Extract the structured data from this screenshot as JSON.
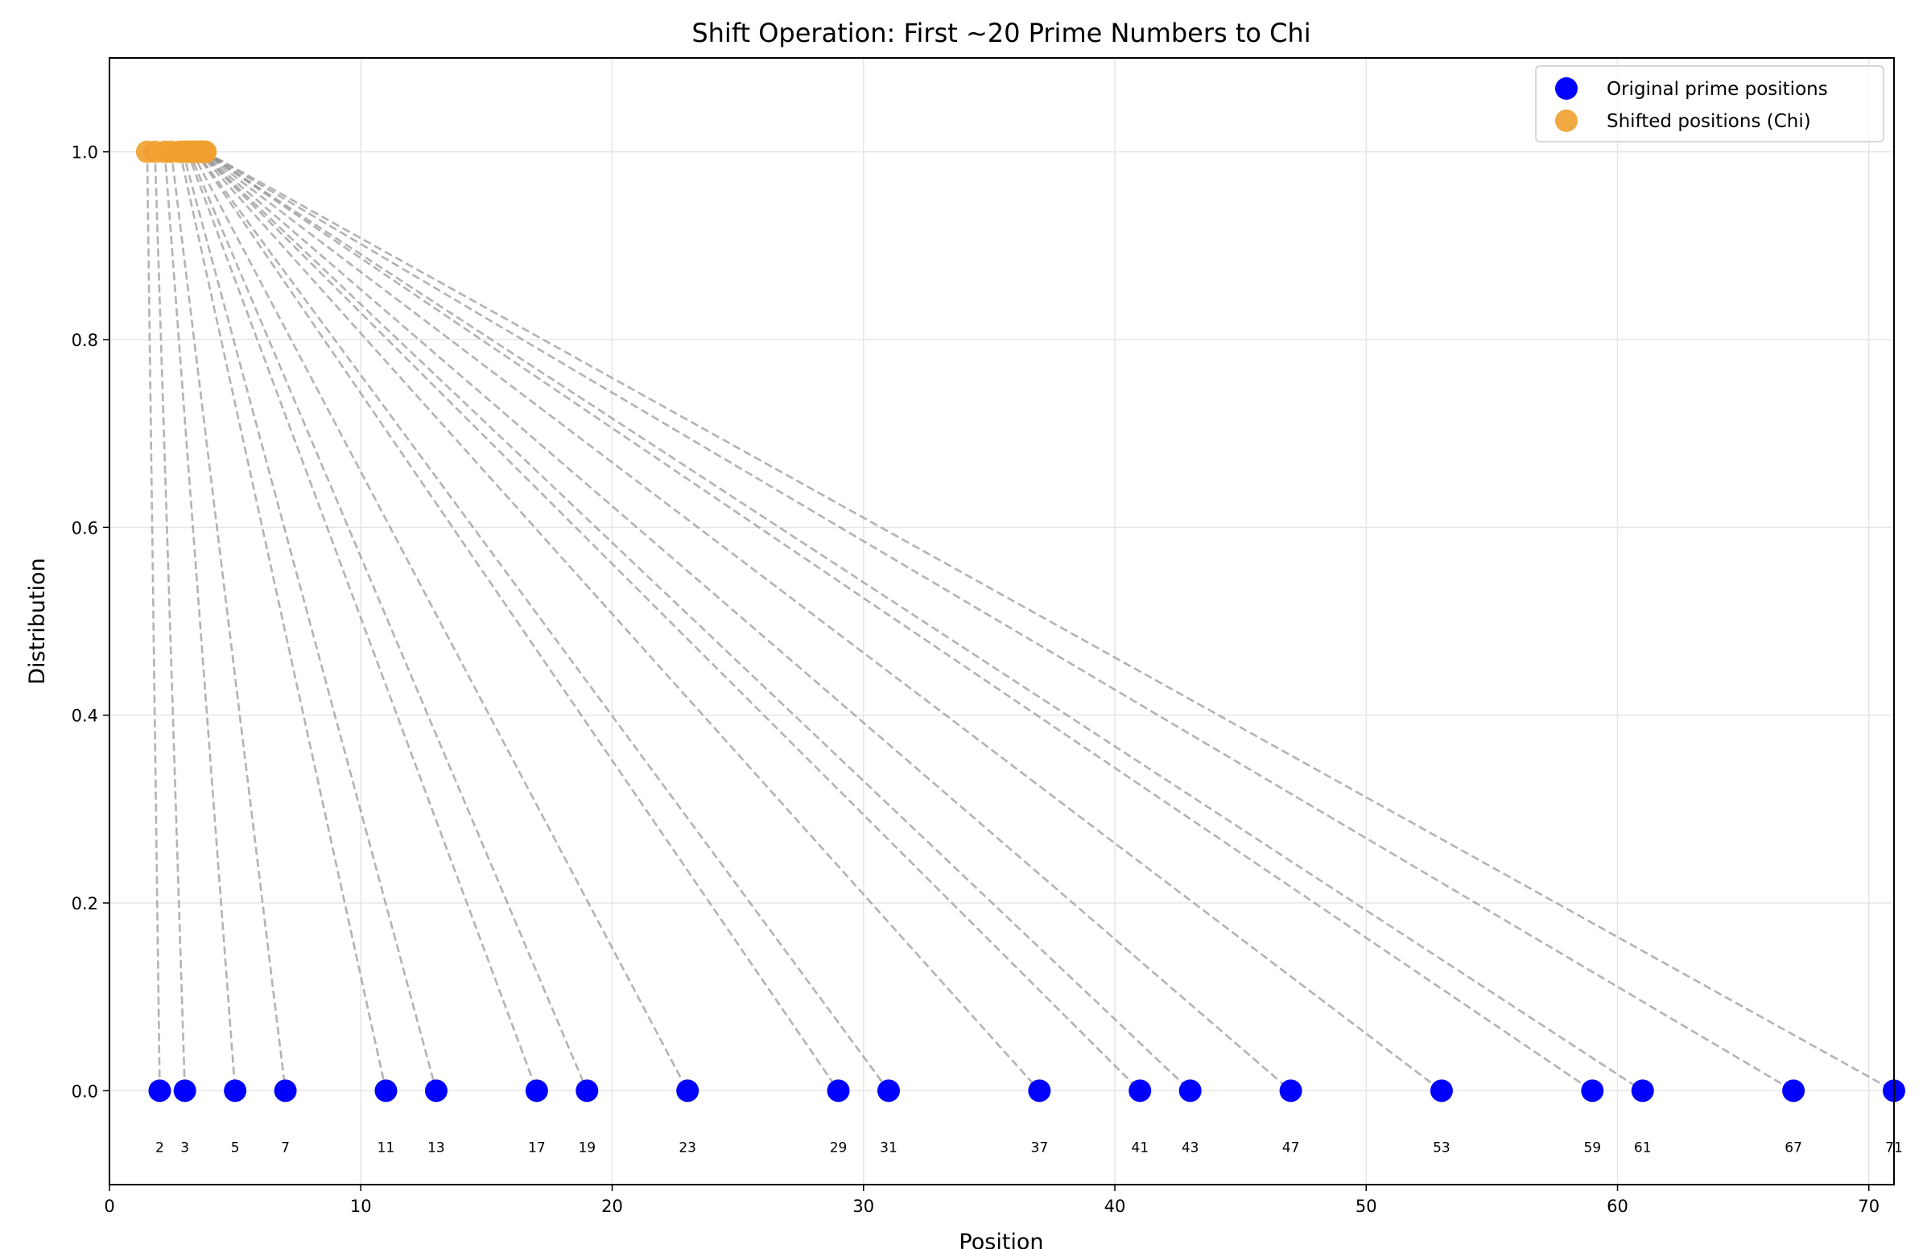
{
  "chart_data": {
    "type": "scatter",
    "title": "Shift Operation: First ~20 Prime Numbers to Chi",
    "xlabel": "Position",
    "ylabel": "Distribution",
    "xlim": [
      0,
      71
    ],
    "ylim": [
      -0.1,
      1.1
    ],
    "xticks": [
      "0",
      "10",
      "20",
      "30",
      "40",
      "50",
      "60",
      "70"
    ],
    "xtick_values": [
      0,
      10,
      20,
      30,
      40,
      50,
      60,
      70
    ],
    "yticks": [
      "0.0",
      "0.2",
      "0.4",
      "0.6",
      "0.8",
      "1.0"
    ],
    "ytick_values": [
      0,
      0.2,
      0.4,
      0.6,
      0.8,
      1.0
    ],
    "grid": true,
    "legend_position": "top-right",
    "series": [
      {
        "name": "Original prime positions",
        "color": "#0000ff",
        "x": [
          2,
          3,
          5,
          7,
          11,
          13,
          17,
          19,
          23,
          29,
          31,
          37,
          41,
          43,
          47,
          53,
          59,
          61,
          67,
          71
        ],
        "y": 0
      },
      {
        "name": "Shifted positions (Chi)",
        "color": "#f0a030",
        "x": [
          1.5,
          1.81,
          2.2,
          2.46,
          2.8,
          2.92,
          3.1,
          3.17,
          3.28,
          3.42,
          3.45,
          3.53,
          3.58,
          3.6,
          3.64,
          3.69,
          3.74,
          3.75,
          3.79,
          3.82
        ],
        "y": 1
      }
    ],
    "point_labels": [
      "2",
      "3",
      "5",
      "7",
      "11",
      "13",
      "17",
      "19",
      "23",
      "29",
      "31",
      "37",
      "41",
      "43",
      "47",
      "53",
      "59",
      "61",
      "67",
      "71"
    ],
    "connector_style": "dashed gray"
  }
}
